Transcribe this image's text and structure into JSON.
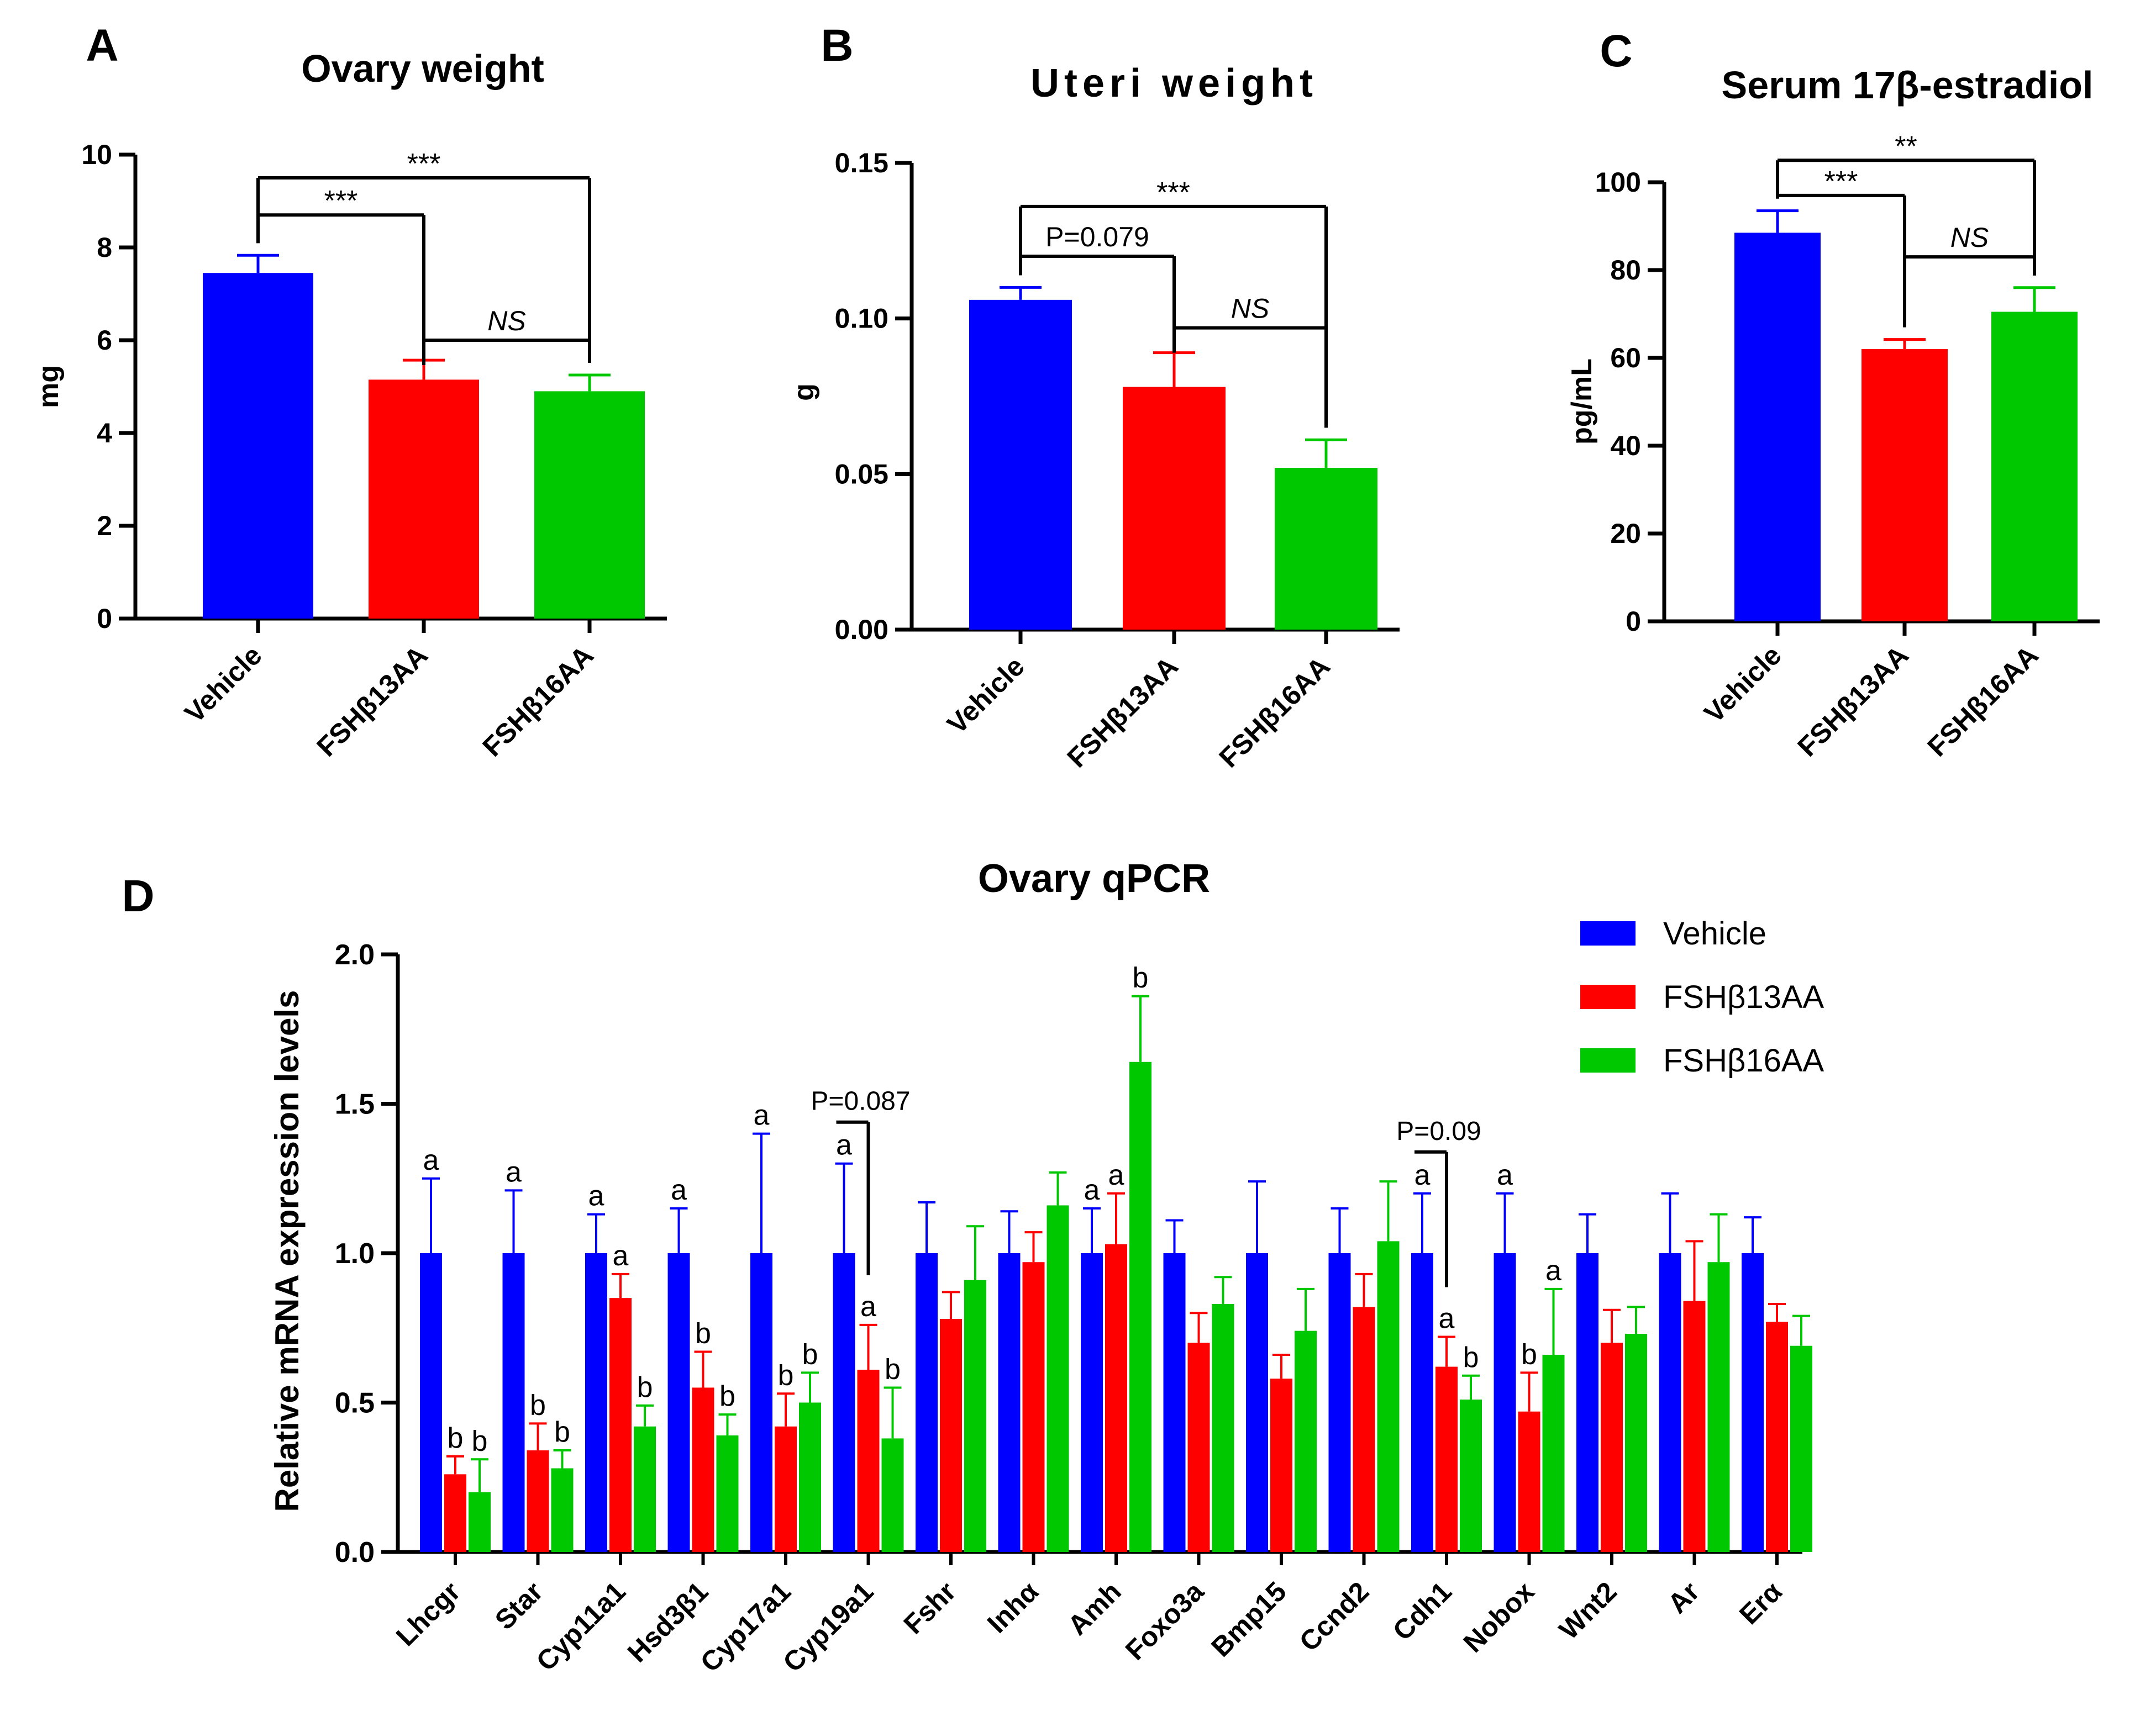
{
  "colors": {
    "vehicle": "#0000ff",
    "fsh13": "#ff0000",
    "fsh16": "#00c800",
    "axis": "#000000"
  },
  "chart_data": [
    {
      "panel": "A",
      "type": "bar",
      "title": "Ovary weight",
      "ylabel": "mg",
      "xlabel": "",
      "ylim": [
        0,
        10
      ],
      "yticks": [
        "0",
        "2",
        "4",
        "6",
        "8",
        "10"
      ],
      "categories": [
        "Vehicle",
        "FSHβ13AA",
        "FSHβ16AA"
      ],
      "values": [
        7.45,
        5.15,
        4.9
      ],
      "errors": [
        0.38,
        0.42,
        0.35
      ],
      "significance": [
        {
          "from": 0,
          "to": 2,
          "label": "***",
          "y": 9.5
        },
        {
          "from": 0,
          "to": 1,
          "label": "***",
          "y": 8.7
        },
        {
          "from": 1,
          "to": 2,
          "label": "NS",
          "y": 6.0,
          "italic": true
        }
      ]
    },
    {
      "panel": "B",
      "type": "bar",
      "title": "Uteri weight",
      "ylabel": "g",
      "xlabel": "",
      "ylim": [
        0,
        0.15
      ],
      "yticks": [
        "0.00",
        "0.05",
        "0.10",
        "0.15"
      ],
      "categories": [
        "Vehicle",
        "FSHβ13AA",
        "FSHβ16AA"
      ],
      "values": [
        0.106,
        0.078,
        0.052
      ],
      "errors": [
        0.004,
        0.011,
        0.009
      ],
      "significance": [
        {
          "from": 0,
          "to": 2,
          "label": "***",
          "y": 0.136
        },
        {
          "from": 0,
          "to": 1,
          "label": "P=0.079",
          "y": 0.12
        },
        {
          "from": 1,
          "to": 2,
          "label": "NS",
          "y": 0.097,
          "italic": true
        }
      ]
    },
    {
      "panel": "C",
      "type": "bar",
      "title": "Serum 17β-estradiol",
      "ylabel": "pg/mL",
      "xlabel": "",
      "ylim": [
        0,
        100
      ],
      "yticks": [
        "0",
        "20",
        "40",
        "60",
        "80",
        "100"
      ],
      "categories": [
        "Vehicle",
        "FSHβ13AA",
        "FSHβ16AA"
      ],
      "values": [
        88.5,
        62,
        70.5
      ],
      "errors": [
        5,
        2.2,
        5.5
      ],
      "significance": [
        {
          "from": 0,
          "to": 2,
          "label": "**",
          "y": 105
        },
        {
          "from": 0,
          "to": 1,
          "label": "***",
          "y": 97
        },
        {
          "from": 1,
          "to": 2,
          "label": "NS",
          "y": 83,
          "italic": true
        }
      ]
    },
    {
      "panel": "D",
      "type": "bar",
      "title": "Ovary qPCR",
      "ylabel": "Relative mRNA expression levels",
      "xlabel": "",
      "ylim": [
        0,
        2.0
      ],
      "yticks": [
        "0.0",
        "0.5",
        "1.0",
        "1.5",
        "2.0"
      ],
      "legend": {
        "position": "top-right",
        "entries": [
          "Vehicle",
          "FSHβ13AA",
          "FSHβ16AA"
        ]
      },
      "categories": [
        "Lhcgr",
        "Star",
        "Cyp11a1",
        "Hsd3β1",
        "Cyp17a1",
        "Cyp19a1",
        "Fshr",
        "Inhα",
        "Amh",
        "Foxo3a",
        "Bmp15",
        "Ccnd2",
        "Cdh1",
        "Nobox",
        "Wnt2",
        "Ar",
        "Erα"
      ],
      "series": [
        {
          "name": "Vehicle",
          "values": [
            1,
            1,
            1,
            1,
            1,
            1,
            1,
            1,
            1,
            1,
            1,
            1,
            1,
            1,
            1,
            1,
            1
          ],
          "errors": [
            0.25,
            0.21,
            0.13,
            0.15,
            0.4,
            0.3,
            0.17,
            0.14,
            0.15,
            0.11,
            0.24,
            0.15,
            0.2,
            0.2,
            0.13,
            0.2,
            0.12
          ],
          "letters": [
            "a",
            "a",
            "a",
            "a",
            "a",
            "a",
            "",
            "",
            "a",
            "",
            "",
            "",
            "a",
            "a",
            "",
            "",
            ""
          ]
        },
        {
          "name": "FSHβ13AA",
          "values": [
            0.26,
            0.34,
            0.85,
            0.55,
            0.42,
            0.61,
            0.78,
            0.97,
            1.03,
            0.7,
            0.58,
            0.82,
            0.62,
            0.47,
            0.7,
            0.84,
            0.77
          ],
          "errors": [
            0.06,
            0.09,
            0.08,
            0.12,
            0.11,
            0.15,
            0.09,
            0.1,
            0.17,
            0.1,
            0.08,
            0.11,
            0.1,
            0.13,
            0.11,
            0.2,
            0.06
          ],
          "letters": [
            "b",
            "b",
            "a",
            "b",
            "b",
            "a",
            "",
            "",
            "a",
            "",
            "",
            "",
            "a",
            "b",
            "",
            "",
            ""
          ]
        },
        {
          "name": "FSHβ16AA",
          "values": [
            0.2,
            0.28,
            0.42,
            0.39,
            0.5,
            0.38,
            0.91,
            1.16,
            1.64,
            0.83,
            0.74,
            1.04,
            0.51,
            0.66,
            0.73,
            0.97,
            0.69
          ],
          "errors": [
            0.11,
            0.06,
            0.07,
            0.07,
            0.1,
            0.17,
            0.18,
            0.11,
            0.22,
            0.09,
            0.14,
            0.2,
            0.08,
            0.22,
            0.09,
            0.16,
            0.1
          ],
          "letters": [
            "b",
            "b",
            "b",
            "b",
            "b",
            "b",
            "",
            "",
            "b",
            "",
            "",
            "",
            "b",
            "a",
            "",
            "",
            ""
          ]
        }
      ],
      "annotations": [
        {
          "category": "Cyp19a1",
          "label": "P=0.087"
        },
        {
          "category": "Cdh1",
          "label": "P=0.09"
        }
      ]
    }
  ]
}
